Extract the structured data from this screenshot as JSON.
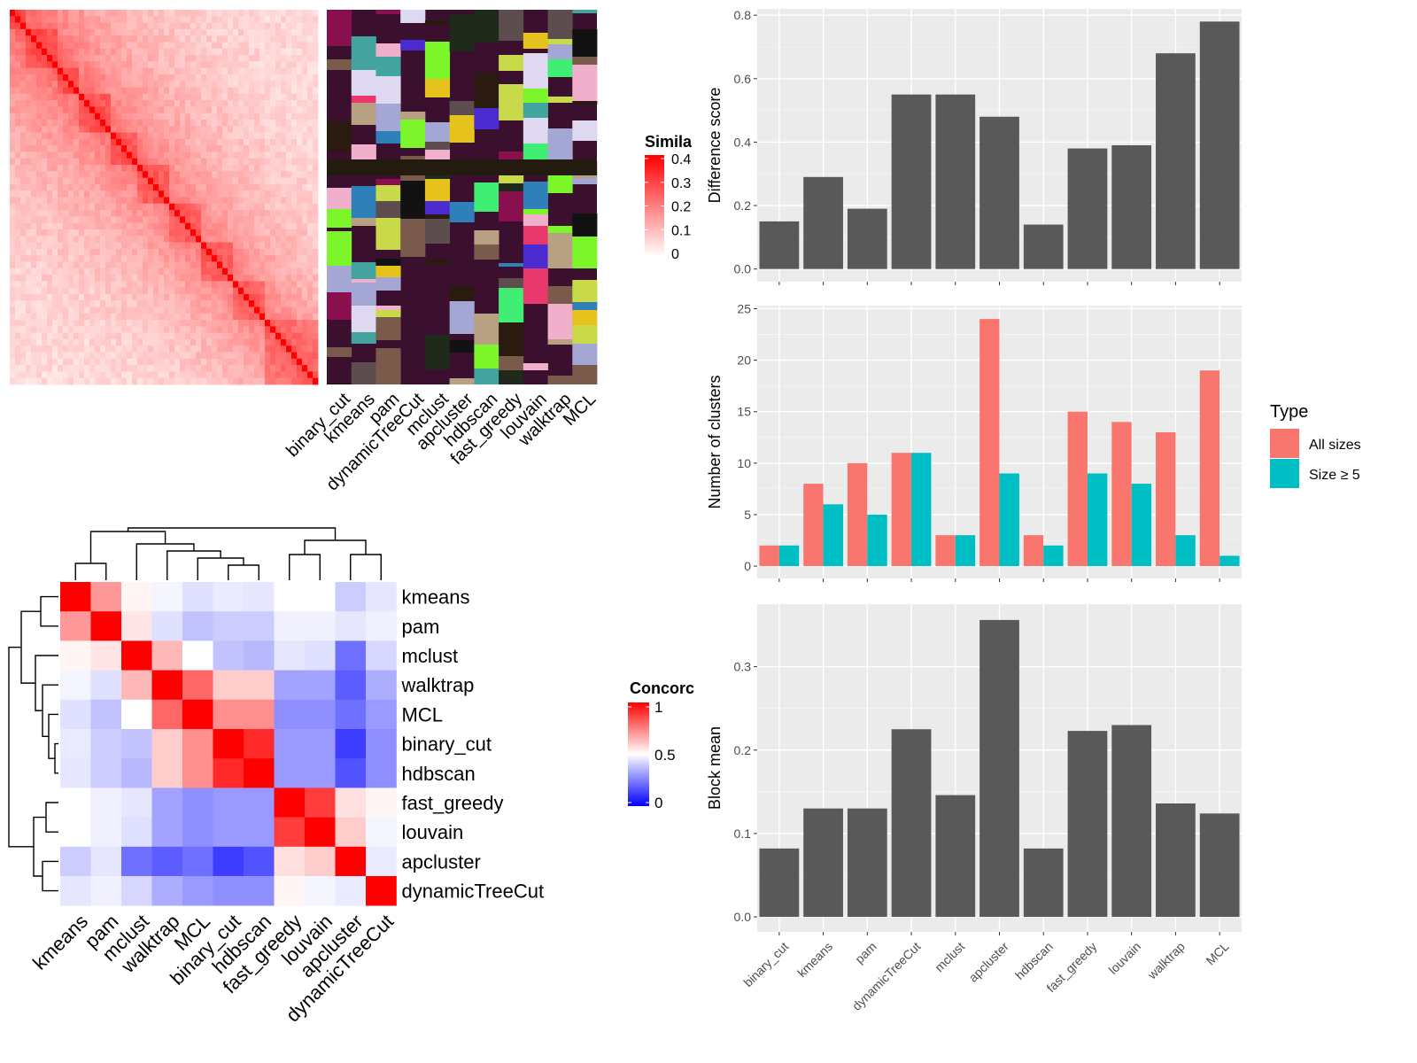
{
  "chart_data": [
    {
      "type": "heatmap",
      "name": "similarity-heatmap",
      "legend_title": "Simila",
      "legend_ticks": [
        "0.4",
        "0.3",
        "0.2",
        "0.1",
        "0"
      ],
      "colors": {
        "low": "#ffffff",
        "high": "#ff0000"
      },
      "range": [
        0,
        0.4
      ]
    },
    {
      "type": "heatmap",
      "name": "cluster-membership-bar",
      "columns": [
        "binary_cut",
        "kmeans",
        "pam",
        "dynamicTreeCut",
        "mclust",
        "apcluster",
        "hdbscan",
        "fast_greedy",
        "louvain",
        "walktrap",
        "MCL"
      ],
      "background_color": "#3b0f2e"
    },
    {
      "type": "heatmap",
      "name": "concordance-heatmap",
      "legend_title": "Concorc",
      "legend_ticks": [
        "1",
        "0.5",
        "0"
      ],
      "colors": {
        "low": "#0000ff",
        "mid": "#ffffff",
        "high": "#ff0000"
      },
      "rows": [
        "kmeans",
        "pam",
        "mclust",
        "walktrap",
        "MCL",
        "binary_cut",
        "hdbscan",
        "fast_greedy",
        "louvain",
        "apcluster",
        "dynamicTreeCut"
      ],
      "columns": [
        "kmeans",
        "pam",
        "mclust",
        "walktrap",
        "MCL",
        "binary_cut",
        "hdbscan",
        "fast_greedy",
        "louvain",
        "apcluster",
        "dynamicTreeCut"
      ],
      "values": [
        [
          1.0,
          0.7,
          0.52,
          0.48,
          0.44,
          0.46,
          0.45,
          0.5,
          0.5,
          0.4,
          0.45
        ],
        [
          0.7,
          1.0,
          0.55,
          0.44,
          0.38,
          0.4,
          0.4,
          0.47,
          0.47,
          0.45,
          0.47
        ],
        [
          0.52,
          0.55,
          1.0,
          0.64,
          0.5,
          0.38,
          0.36,
          0.45,
          0.44,
          0.22,
          0.42
        ],
        [
          0.48,
          0.44,
          0.64,
          1.0,
          0.8,
          0.6,
          0.6,
          0.32,
          0.32,
          0.18,
          0.34
        ],
        [
          0.44,
          0.38,
          0.5,
          0.8,
          1.0,
          0.72,
          0.72,
          0.28,
          0.28,
          0.22,
          0.3
        ],
        [
          0.46,
          0.4,
          0.38,
          0.6,
          0.72,
          1.0,
          0.92,
          0.3,
          0.3,
          0.12,
          0.28
        ],
        [
          0.45,
          0.4,
          0.36,
          0.6,
          0.72,
          0.92,
          1.0,
          0.3,
          0.3,
          0.16,
          0.28
        ],
        [
          0.5,
          0.47,
          0.45,
          0.32,
          0.28,
          0.3,
          0.3,
          1.0,
          0.88,
          0.56,
          0.52
        ],
        [
          0.5,
          0.47,
          0.44,
          0.32,
          0.28,
          0.3,
          0.3,
          0.88,
          1.0,
          0.6,
          0.48
        ],
        [
          0.4,
          0.45,
          0.22,
          0.18,
          0.22,
          0.12,
          0.16,
          0.56,
          0.6,
          1.0,
          0.46
        ],
        [
          0.45,
          0.47,
          0.42,
          0.34,
          0.3,
          0.28,
          0.28,
          0.52,
          0.48,
          0.46,
          1.0
        ]
      ],
      "range": [
        0,
        1
      ]
    },
    {
      "type": "bar",
      "name": "difference-score",
      "categories": [
        "binary_cut",
        "kmeans",
        "pam",
        "dynamicTreeCut",
        "mclust",
        "apcluster",
        "hdbscan",
        "fast_greedy",
        "louvain",
        "walktrap",
        "MCL"
      ],
      "values": [
        0.15,
        0.29,
        0.19,
        0.55,
        0.55,
        0.48,
        0.14,
        0.38,
        0.39,
        0.68,
        0.78
      ],
      "ylabel": "Difference score",
      "ylim": [
        -0.04,
        0.82
      ],
      "yticks": [
        0.0,
        0.2,
        0.4,
        0.6,
        0.8
      ],
      "ytick_labels": [
        "0.0",
        "0.2",
        "0.4",
        "0.6",
        "0.8"
      ],
      "color": "#595959",
      "grid": true
    },
    {
      "type": "bar",
      "name": "number-of-clusters",
      "categories": [
        "binary_cut",
        "kmeans",
        "pam",
        "dynamicTreeCut",
        "mclust",
        "apcluster",
        "hdbscan",
        "fast_greedy",
        "louvain",
        "walktrap",
        "MCL"
      ],
      "series": [
        {
          "name": "All sizes",
          "color": "#f8766d",
          "values": [
            2,
            8,
            10,
            11,
            3,
            24,
            3,
            15,
            14,
            13,
            19
          ]
        },
        {
          "name": "Size ≥ 5",
          "color": "#00bfc4",
          "values": [
            2,
            6,
            5,
            11,
            3,
            9,
            2,
            9,
            8,
            3,
            1
          ]
        }
      ],
      "ylabel": "Number of clusters",
      "ylim": [
        -1.2,
        25.3
      ],
      "yticks": [
        0,
        5,
        10,
        15,
        20,
        25
      ],
      "ytick_labels": [
        "0",
        "5",
        "10",
        "15",
        "20",
        "25"
      ],
      "legend_title": "Type",
      "legend_position": "right",
      "grid": true
    },
    {
      "type": "bar",
      "name": "block-mean",
      "categories": [
        "binary_cut",
        "kmeans",
        "pam",
        "dynamicTreeCut",
        "mclust",
        "apcluster",
        "hdbscan",
        "fast_greedy",
        "louvain",
        "walktrap",
        "MCL"
      ],
      "values": [
        0.082,
        0.13,
        0.13,
        0.225,
        0.146,
        0.356,
        0.082,
        0.223,
        0.23,
        0.136,
        0.124
      ],
      "ylabel": "Block mean",
      "ylim": [
        -0.018,
        0.375
      ],
      "yticks": [
        0.0,
        0.1,
        0.2,
        0.3
      ],
      "ytick_labels": [
        "0.0",
        "0.1",
        "0.2",
        "0.3"
      ],
      "color": "#595959",
      "grid": true
    }
  ]
}
